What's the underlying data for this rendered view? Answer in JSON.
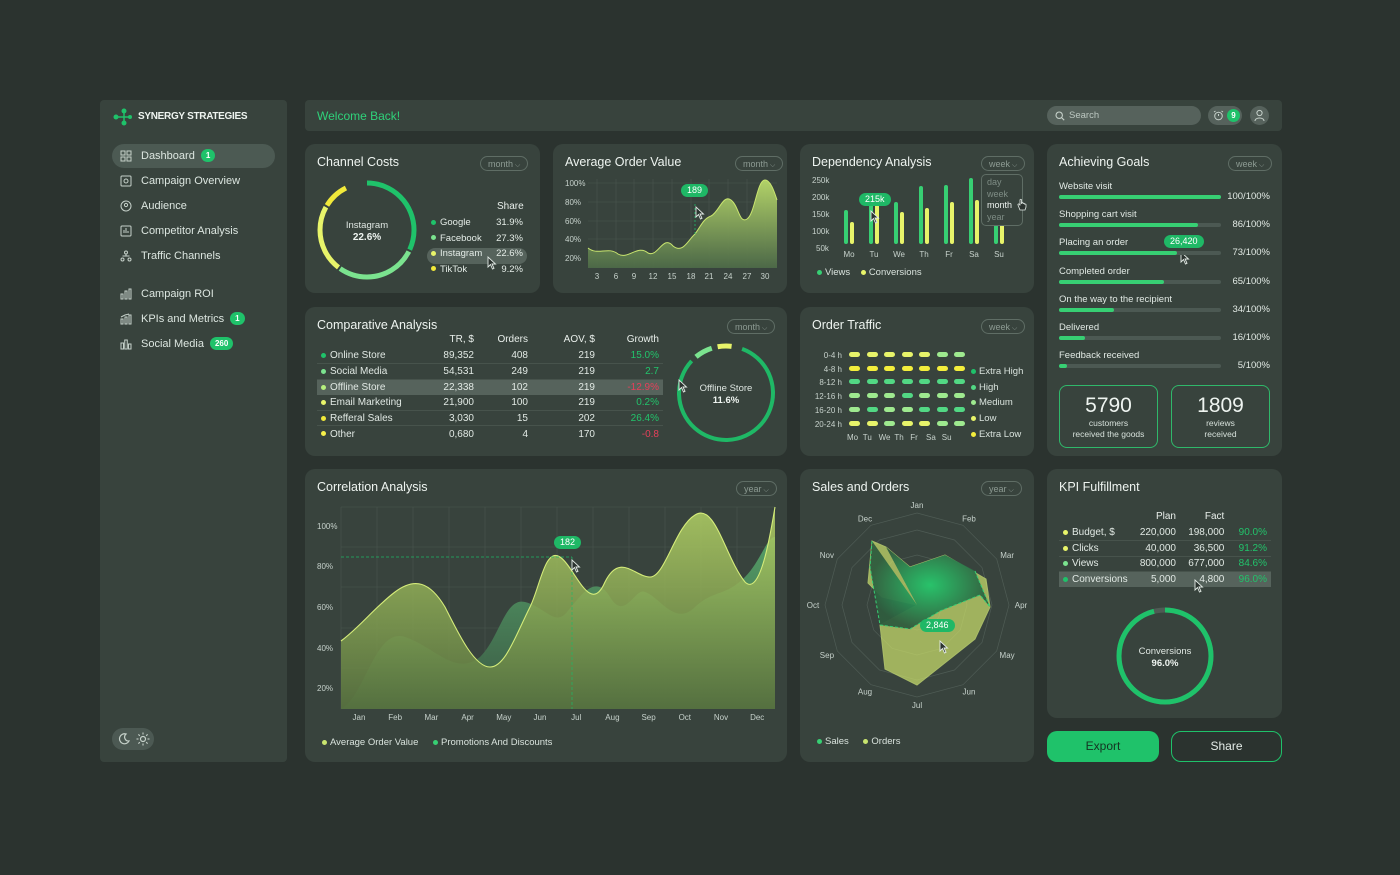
{
  "brand": {
    "name": "SYNERGY STRATEGIES",
    "accent": "#1fc26a"
  },
  "header": {
    "welcome": "Welcome Back!",
    "search_placeholder": "Search",
    "notifications": "9"
  },
  "sidebar": {
    "items": [
      {
        "label": "Dashboard",
        "icon": "dashboard-icon",
        "badge": "1",
        "active": true
      },
      {
        "label": "Campaign Overview",
        "icon": "campaign-icon"
      },
      {
        "label": "Audience",
        "icon": "audience-icon"
      },
      {
        "label": "Competitor Analysis",
        "icon": "competitor-icon"
      },
      {
        "label": "Traffic Channels",
        "icon": "traffic-icon"
      },
      {
        "label": "Campaign ROI",
        "icon": "roi-icon"
      },
      {
        "label": "KPIs and Metrics",
        "icon": "kpi-icon",
        "badge": "1"
      },
      {
        "label": "Social Media",
        "icon": "social-icon",
        "badge": "260"
      }
    ]
  },
  "channel_costs": {
    "title": "Channel Costs",
    "period": "month",
    "center_label": "Instagram",
    "center_value": "22.6%",
    "share_header": "Share",
    "rows": [
      {
        "name": "Google",
        "value": "31.9%",
        "color": "#1fc26a"
      },
      {
        "name": "Facebook",
        "value": "27.3%",
        "color": "#7be38f"
      },
      {
        "name": "Instagram",
        "value": "22.6%",
        "color": "#e8f46a"
      },
      {
        "name": "TikTok",
        "value": "9.2%",
        "color": "#f1e93a"
      }
    ]
  },
  "avg_order": {
    "title": "Average Order Value",
    "period": "month",
    "tooltip": "189",
    "y_ticks": [
      "100%",
      "80%",
      "60%",
      "40%",
      "20%"
    ],
    "x_ticks": [
      "3",
      "6",
      "9",
      "12",
      "15",
      "18",
      "21",
      "24",
      "27",
      "30"
    ]
  },
  "dependency": {
    "title": "Dependency Analysis",
    "period": "week",
    "tooltip": "215k",
    "dropdown": [
      "day",
      "week",
      "month",
      "year"
    ],
    "dropdown_selected": "month",
    "y_ticks": [
      "250k",
      "200k",
      "150k",
      "100k",
      "50k"
    ],
    "days": [
      "Mo",
      "Tu",
      "We",
      "Th",
      "Fr",
      "Sa",
      "Su"
    ],
    "legend": [
      "Views",
      "Conversions"
    ]
  },
  "goals": {
    "title": "Achieving Goals",
    "period": "week",
    "tooltip": "26,420",
    "items": [
      {
        "label": "Website visit",
        "value": "100/100%",
        "pct": 100
      },
      {
        "label": "Shopping cart visit",
        "value": "86/100%",
        "pct": 86
      },
      {
        "label": "Placing an order",
        "value": "73/100%",
        "pct": 73
      },
      {
        "label": "Completed order",
        "value": "65/100%",
        "pct": 65
      },
      {
        "label": "On the way to the recipient",
        "value": "34/100%",
        "pct": 34
      },
      {
        "label": "Delivered",
        "value": "16/100%",
        "pct": 16
      },
      {
        "label": "Feedback received",
        "value": "5/100%",
        "pct": 5
      }
    ],
    "stat1": {
      "value": "5790",
      "line1": "customers",
      "line2": "received the goods"
    },
    "stat2": {
      "value": "1809",
      "line1": "reviews",
      "line2": "received"
    }
  },
  "comparative": {
    "title": "Comparative Analysis",
    "period": "month",
    "headers": [
      "TR, $",
      "Orders",
      "AOV, $",
      "Growth"
    ],
    "rows": [
      {
        "name": "Online Store",
        "tr": "89,352",
        "orders": "408",
        "aov": "219",
        "growth": "15.0%",
        "neg": false,
        "color": "#1fc26a"
      },
      {
        "name": "Social Media",
        "tr": "54,531",
        "orders": "249",
        "aov": "219",
        "growth": "2.7",
        "neg": false,
        "color": "#7be38f"
      },
      {
        "name": "Offline Store",
        "tr": "22,338",
        "orders": "102",
        "aov": "219",
        "growth": "-12.9%",
        "neg": true,
        "color": "#b6ef7e"
      },
      {
        "name": "Email Marketing",
        "tr": "21,900",
        "orders": "100",
        "aov": "219",
        "growth": "0.2%",
        "neg": false,
        "color": "#e8f46a"
      },
      {
        "name": "Refferal Sales",
        "tr": "3,030",
        "orders": "15",
        "aov": "202",
        "growth": "26.4%",
        "neg": false,
        "color": "#f1e93a"
      },
      {
        "name": "Other",
        "tr": "0,680",
        "orders": "4",
        "aov": "170",
        "growth": "-0.8",
        "neg": true,
        "color": "#f6f04a"
      }
    ],
    "donut_label": "Offline Store",
    "donut_value": "11.6%"
  },
  "order_traffic": {
    "title": "Order Traffic",
    "period": "week",
    "rows": [
      "0-4 h",
      "4-8 h",
      "8-12 h",
      "12-16 h",
      "16-20 h",
      "20-24 h"
    ],
    "days": [
      "Mo",
      "Tu",
      "We",
      "Th",
      "Fr",
      "Sa",
      "Su"
    ],
    "legend": [
      {
        "label": "Extra High",
        "color": "#1fc26a"
      },
      {
        "label": "High",
        "color": "#52d884"
      },
      {
        "label": "Medium",
        "color": "#9ee98f"
      },
      {
        "label": "Low",
        "color": "#e8f46a"
      },
      {
        "label": "Extra Low",
        "color": "#f3ee3c"
      }
    ]
  },
  "correlation": {
    "title": "Correlation Analysis",
    "period": "year",
    "tooltip": "182",
    "y_ticks": [
      "100%",
      "80%",
      "60%",
      "40%",
      "20%"
    ],
    "months": [
      "Jan",
      "Feb",
      "Mar",
      "Apr",
      "May",
      "Jun",
      "Jul",
      "Aug",
      "Sep",
      "Oct",
      "Nov",
      "Dec"
    ],
    "legend": [
      "Average Order Value",
      "Promotions And Discounts"
    ]
  },
  "sales_orders": {
    "title": "Sales and Orders",
    "period": "year",
    "tooltip": "2,846",
    "months": [
      "Jan",
      "Feb",
      "Mar",
      "Apr",
      "May",
      "Jun",
      "Jul",
      "Aug",
      "Sep",
      "Oct",
      "Nov",
      "Dec"
    ],
    "legend": [
      "Sales",
      "Orders"
    ]
  },
  "kpi": {
    "title": "KPI Fulfillment",
    "headers": [
      "Plan",
      "Fact"
    ],
    "rows": [
      {
        "name": "Budget, $",
        "plan": "220,000",
        "fact": "198,000",
        "pct": "90.0%",
        "color": "#e8f46a"
      },
      {
        "name": "Clicks",
        "plan": "40,000",
        "fact": "36,500",
        "pct": "91.2%",
        "color": "#e8f46a"
      },
      {
        "name": "Views",
        "plan": "800,000",
        "fact": "677,000",
        "pct": "84.6%",
        "color": "#7be38f"
      },
      {
        "name": "Conversions",
        "plan": "5,000",
        "fact": "4,800",
        "pct": "96.0%",
        "color": "#1fc26a"
      }
    ],
    "donut_label": "Conversions",
    "donut_value": "96.0%"
  },
  "actions": {
    "export": "Export",
    "share": "Share"
  }
}
